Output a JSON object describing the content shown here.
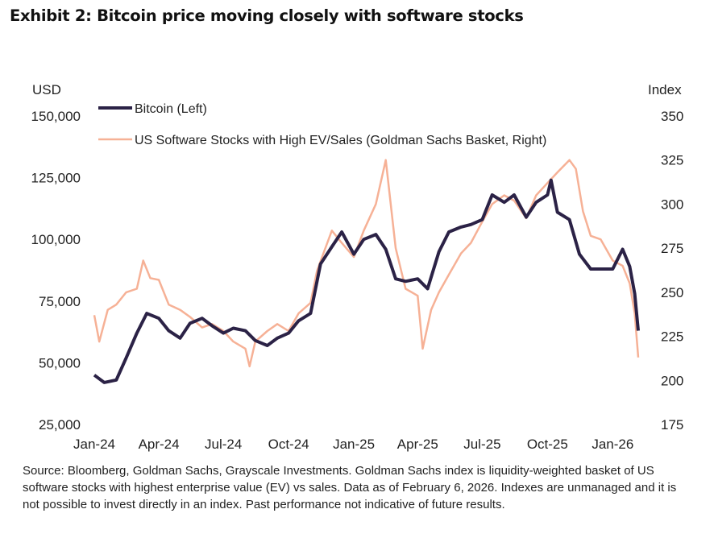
{
  "title": "Exhibit 2: Bitcoin price moving closely with software stocks",
  "source": "Source: Bloomberg, Goldman Sachs, Grayscale Investments. Goldman Sachs index is liquidity-weighted basket of US software stocks with highest enterprise value (EV) vs sales. Data as of February 6, 2026. Indexes are unmanaged and it is not possible to invest directly in an index. Past performance not indicative of future results.",
  "chart_data": {
    "type": "line",
    "title": "Exhibit 2: Bitcoin price moving closely with software stocks",
    "ylabel_left": "USD",
    "ylabel_right": "Index",
    "ylim_left": [
      25000,
      150000
    ],
    "ylim_right": [
      175,
      350
    ],
    "yticks_left": [
      "150,000",
      "125,000",
      "100,000",
      "75,000",
      "50,000",
      "25,000"
    ],
    "yticks_right": [
      "350",
      "325",
      "300",
      "275",
      "250",
      "225",
      "200",
      "175"
    ],
    "xticks": [
      "Jan-24",
      "Apr-24",
      "Jul-24",
      "Oct-24",
      "Jan-25",
      "Apr-25",
      "Jul-25",
      "Oct-25",
      "Jan-26"
    ],
    "xlim": [
      "2024-01-01",
      "2026-02-06"
    ],
    "grid": false,
    "legend_position": "top-left",
    "series": [
      {
        "name": "Bitcoin (Left)",
        "axis": "left",
        "color": "#2b2246",
        "x": [
          "2024-01-01",
          "2024-01-15",
          "2024-02-01",
          "2024-02-15",
          "2024-03-01",
          "2024-03-15",
          "2024-04-01",
          "2024-04-15",
          "2024-05-01",
          "2024-05-15",
          "2024-06-01",
          "2024-06-15",
          "2024-07-01",
          "2024-07-15",
          "2024-08-01",
          "2024-08-15",
          "2024-09-01",
          "2024-09-15",
          "2024-10-01",
          "2024-10-15",
          "2024-11-01",
          "2024-11-15",
          "2024-12-01",
          "2024-12-15",
          "2025-01-01",
          "2025-01-15",
          "2025-02-01",
          "2025-02-15",
          "2025-03-01",
          "2025-03-15",
          "2025-04-01",
          "2025-04-15",
          "2025-05-01",
          "2025-05-15",
          "2025-06-01",
          "2025-06-15",
          "2025-07-01",
          "2025-07-15",
          "2025-08-01",
          "2025-08-15",
          "2025-09-01",
          "2025-09-15",
          "2025-10-01",
          "2025-10-06",
          "2025-10-15",
          "2025-11-01",
          "2025-11-15",
          "2025-12-01",
          "2025-12-15",
          "2026-01-01",
          "2026-01-15",
          "2026-01-25",
          "2026-02-01",
          "2026-02-06"
        ],
        "y": [
          45000,
          42000,
          43000,
          52000,
          62000,
          70000,
          68000,
          63000,
          60000,
          66000,
          68000,
          65000,
          62000,
          64000,
          63000,
          59000,
          57000,
          60000,
          62000,
          67000,
          70000,
          90000,
          97000,
          103000,
          94000,
          100000,
          102000,
          96000,
          84000,
          83000,
          84000,
          80000,
          95000,
          103000,
          105000,
          106000,
          108000,
          118000,
          115000,
          118000,
          109000,
          115000,
          118000,
          124000,
          111000,
          108000,
          94000,
          88000,
          88000,
          88000,
          96000,
          89000,
          78000,
          63000
        ]
      },
      {
        "name": "US Software Stocks with High EV/Sales (Goldman Sachs Basket, Right)",
        "axis": "right",
        "color": "#f6b196",
        "x": [
          "2024-01-01",
          "2024-01-08",
          "2024-01-20",
          "2024-02-01",
          "2024-02-15",
          "2024-03-01",
          "2024-03-10",
          "2024-03-20",
          "2024-04-01",
          "2024-04-15",
          "2024-05-01",
          "2024-05-15",
          "2024-06-01",
          "2024-06-15",
          "2024-07-01",
          "2024-07-15",
          "2024-08-01",
          "2024-08-07",
          "2024-08-15",
          "2024-09-01",
          "2024-09-15",
          "2024-10-01",
          "2024-10-15",
          "2024-11-01",
          "2024-11-10",
          "2024-11-20",
          "2024-12-01",
          "2024-12-15",
          "2025-01-01",
          "2025-01-15",
          "2025-02-01",
          "2025-02-15",
          "2025-03-01",
          "2025-03-15",
          "2025-04-01",
          "2025-04-08",
          "2025-04-20",
          "2025-05-01",
          "2025-05-15",
          "2025-06-01",
          "2025-06-15",
          "2025-07-01",
          "2025-07-15",
          "2025-08-01",
          "2025-08-15",
          "2025-09-01",
          "2025-09-15",
          "2025-10-01",
          "2025-10-15",
          "2025-11-01",
          "2025-11-10",
          "2025-11-20",
          "2025-12-01",
          "2025-12-15",
          "2026-01-01",
          "2026-01-15",
          "2026-01-25",
          "2026-02-01",
          "2026-02-06"
        ],
        "y": [
          237,
          222,
          240,
          243,
          250,
          252,
          268,
          258,
          257,
          243,
          240,
          236,
          230,
          232,
          228,
          222,
          218,
          208,
          222,
          228,
          232,
          228,
          238,
          244,
          262,
          273,
          285,
          278,
          270,
          285,
          300,
          325,
          275,
          252,
          248,
          218,
          240,
          250,
          260,
          272,
          278,
          290,
          300,
          305,
          302,
          292,
          305,
          312,
          318,
          325,
          320,
          296,
          282,
          280,
          268,
          265,
          255,
          238,
          213
        ]
      }
    ]
  }
}
